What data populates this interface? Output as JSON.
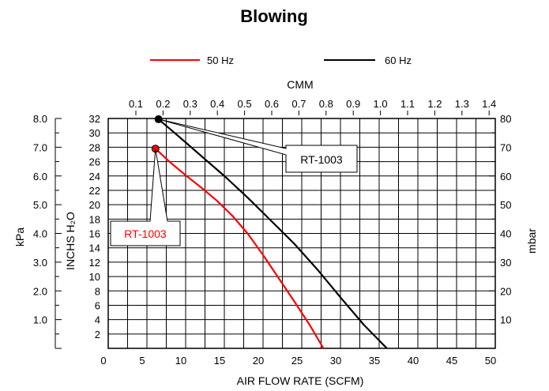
{
  "chart_data": {
    "type": "line",
    "title": "Blowing",
    "xlabel": "AIR FLOW RATE (SCFM)",
    "x2label": "CMM",
    "ylabel": "INCHS H₂O",
    "y2label_left": "kPa",
    "y2label_right": "mbar",
    "xlim": [
      0,
      50
    ],
    "ylim": [
      0,
      32
    ],
    "xticks": [
      "0",
      "5",
      "10",
      "15",
      "20",
      "25",
      "30",
      "35",
      "40",
      "45",
      "50"
    ],
    "x2ticks": [
      "0.1",
      "0.2",
      "0.3",
      "0.4",
      "0.5",
      "0.6",
      "0.7",
      "0.8",
      "0.9",
      "1.0",
      "1.1",
      "1.2",
      "1.3",
      "1.4"
    ],
    "x2tick_values": [
      0.1,
      0.2,
      0.3,
      0.4,
      0.5,
      0.6,
      0.7,
      0.8,
      0.9,
      1.0,
      1.1,
      1.2,
      1.3,
      1.4
    ],
    "yticks": [
      "2",
      "4",
      "6",
      "8",
      "10",
      "12",
      "14",
      "16",
      "18",
      "20",
      "22",
      "24",
      "26",
      "28",
      "30",
      "32"
    ],
    "kpa_ticks": [
      "1.0",
      "2.0",
      "3.0",
      "4.0",
      "5.0",
      "6.0",
      "7.0",
      "8.0"
    ],
    "kpa_values": [
      1,
      2,
      3,
      4,
      5,
      6,
      7,
      8
    ],
    "mbar_ticks": [
      "10",
      "20",
      "30",
      "40",
      "50",
      "60",
      "70",
      "80"
    ],
    "mbar_values": [
      10,
      20,
      30,
      40,
      50,
      60,
      70,
      80
    ],
    "grid": true,
    "legend_position": "top",
    "series": [
      {
        "name": "50 Hz",
        "color": "#ff0000",
        "x": [
          6.1,
          8,
          10,
          12,
          14,
          16,
          18,
          20,
          22,
          24,
          26,
          27.8
        ],
        "y": [
          27.8,
          25.9,
          24.1,
          22.4,
          20.6,
          18.5,
          16.0,
          13.0,
          9.8,
          6.6,
          3.3,
          0
        ],
        "marker": [
          6.1,
          27.8
        ]
      },
      {
        "name": "60 Hz",
        "color": "#000000",
        "x": [
          6.5,
          9,
          12,
          15,
          18,
          21,
          24,
          27,
          30,
          33,
          36
        ],
        "y": [
          31.9,
          29.6,
          26.8,
          24.0,
          21.0,
          17.8,
          14.6,
          11.0,
          7.1,
          3.3,
          0
        ],
        "marker": [
          6.5,
          31.9
        ]
      }
    ],
    "annotations": [
      {
        "text": "RT-1003",
        "series": "50 Hz",
        "color": "#ff0000"
      },
      {
        "text": "RT-1003",
        "series": "60 Hz",
        "color": "#000000"
      }
    ]
  }
}
